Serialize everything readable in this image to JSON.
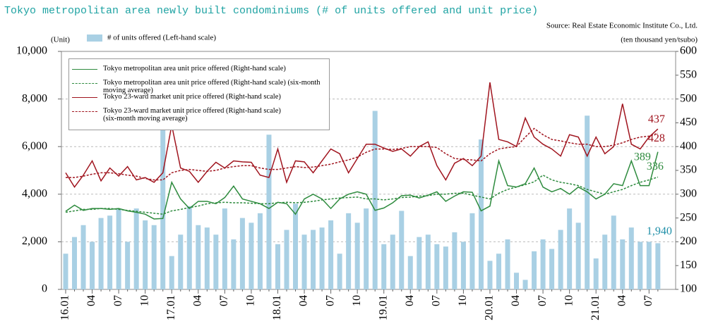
{
  "chart_data": {
    "type": "bar-line",
    "title": "Tokyo metropolitan area newly built condominiums (# of units offered and unit price)",
    "source": "Source: Real Estate Economic Institute Co., Ltd.",
    "y_label": "(Unit)",
    "y2_label": "(ten thousand yen/tsubo)",
    "categories": [
      "16.01",
      null,
      null,
      "04",
      null,
      null,
      "07",
      null,
      null,
      "10",
      null,
      null,
      "17.01",
      null,
      null,
      "04",
      null,
      null,
      "07",
      null,
      null,
      "10",
      null,
      null,
      "18.01",
      null,
      null,
      "04",
      null,
      null,
      "07",
      null,
      null,
      "10",
      null,
      null,
      "19.01",
      null,
      null,
      "04",
      null,
      null,
      "07",
      null,
      null,
      "10",
      null,
      null,
      "20.01",
      null,
      null,
      "04",
      null,
      null,
      "07",
      null,
      null,
      "10",
      null,
      null,
      "21.01",
      null,
      null,
      "04",
      null,
      null,
      "07",
      null
    ],
    "ylim": [
      0,
      10000
    ],
    "yticks": [
      0,
      {
        "value": 2000,
        "label": "2,000"
      },
      {
        "value": 4000,
        "label": "4,000"
      },
      {
        "value": 6000,
        "label": "6,000"
      },
      {
        "value": 8000,
        "label": "8,000"
      },
      {
        "value": 10000,
        "label": "10,000"
      }
    ],
    "y2lim": [
      100,
      600
    ],
    "y2ticks": [
      100,
      150,
      200,
      250,
      300,
      350,
      400,
      450,
      500,
      550,
      600
    ],
    "grid": true,
    "series": [
      {
        "name": "# of units offered (Left-hand scale)",
        "type": "bar",
        "axis": "y",
        "color": "#a9d0e4",
        "values": [
          1500,
          2200,
          2700,
          2000,
          3000,
          3100,
          3400,
          2000,
          3400,
          2900,
          2700,
          6800,
          1400,
          2300,
          3500,
          2700,
          2600,
          2300,
          3400,
          2100,
          3000,
          2800,
          3200,
          6500,
          1900,
          2500,
          3600,
          2300,
          2500,
          2600,
          2900,
          1500,
          3200,
          2800,
          3400,
          7500,
          1900,
          2300,
          3300,
          1400,
          2200,
          2300,
          1900,
          1800,
          2400,
          2000,
          3200,
          6300,
          1200,
          1500,
          2100,
          700,
          400,
          1600,
          2100,
          1700,
          2500,
          3400,
          2800,
          7300,
          1300,
          2300,
          3100,
          2100,
          2600,
          2000,
          2000,
          1940
        ],
        "value_labels": [
          null,
          null,
          null,
          null,
          null,
          null,
          null,
          null,
          null,
          null,
          null,
          null,
          null,
          null,
          null,
          null,
          null,
          null,
          null,
          null,
          null,
          null,
          null,
          null,
          null,
          null,
          null,
          null,
          null,
          null,
          null,
          null,
          null,
          null,
          null,
          null,
          null,
          null,
          null,
          null,
          null,
          null,
          null,
          null,
          null,
          null,
          null,
          null,
          null,
          null,
          null,
          null,
          null,
          null,
          null,
          null,
          null,
          null,
          null,
          null,
          null,
          null,
          null,
          null,
          null,
          null,
          null,
          "1,940"
        ]
      },
      {
        "name": "Tokyo metropolitan area unit price offered (Right-hand scale)",
        "type": "line",
        "axis": "y2",
        "color": "#2e8b3e",
        "dashed": false,
        "values": [
          264,
          277,
          266,
          270,
          270,
          268,
          270,
          265,
          262,
          258,
          248,
          249,
          325,
          290,
          270,
          285,
          285,
          280,
          293,
          317,
          290,
          285,
          280,
          270,
          283,
          280,
          258,
          290,
          300,
          290,
          270,
          290,
          300,
          305,
          300,
          266,
          271,
          282,
          297,
          298,
          292,
          298,
          305,
          285,
          296,
          305,
          304,
          265,
          275,
          370,
          318,
          315,
          322,
          355,
          315,
          305,
          312,
          300,
          315,
          305,
          290,
          300,
          322,
          318,
          370,
          318,
          318,
          389
        ]
      },
      {
        "name": "Tokyo metropolitan area unit price offered (Right-hand scale) (six-month moving average)",
        "type": "line",
        "axis": "y2",
        "color": "#2e8b3e",
        "dashed": true,
        "values": [
          262,
          265,
          268,
          268,
          270,
          270,
          268,
          266,
          264,
          262,
          260,
          258,
          265,
          268,
          272,
          275,
          280,
          282,
          283,
          282,
          282,
          281,
          280,
          280,
          282,
          283,
          282,
          283,
          285,
          288,
          290,
          292,
          293,
          294,
          290,
          290,
          288,
          290,
          293,
          294,
          296,
          297,
          300,
          300,
          302,
          302,
          298,
          294,
          290,
          302,
          310,
          315,
          320,
          326,
          340,
          330,
          325,
          322,
          318,
          310,
          305,
          300,
          305,
          310,
          318,
          325,
          330,
          336
        ]
      },
      {
        "name": "Tokyo 23-ward market unit price offered (Right-hand scale)",
        "type": "line",
        "axis": "y2",
        "color": "#a0141e",
        "dashed": false,
        "values": [
          345,
          315,
          340,
          370,
          328,
          355,
          338,
          358,
          330,
          335,
          325,
          345,
          445,
          355,
          348,
          325,
          348,
          367,
          355,
          370,
          368,
          367,
          340,
          335,
          395,
          325,
          370,
          368,
          345,
          370,
          395,
          385,
          345,
          375,
          405,
          405,
          397,
          390,
          395,
          380,
          400,
          410,
          360,
          330,
          365,
          375,
          360,
          380,
          535,
          415,
          410,
          400,
          460,
          420,
          405,
          395,
          380,
          425,
          420,
          380,
          420,
          385,
          400,
          490,
          405,
          395,
          420,
          437
        ]
      },
      {
        "name": "Tokyo 23-ward market unit price offered (Right-hand scale)\n(six-month moving average)",
        "type": "line",
        "axis": "y2",
        "color": "#a0141e",
        "dashed": true,
        "values": [
          335,
          335,
          338,
          342,
          345,
          345,
          343,
          340,
          338,
          333,
          330,
          330,
          345,
          350,
          352,
          350,
          348,
          350,
          355,
          358,
          360,
          360,
          355,
          352,
          352,
          355,
          358,
          356,
          357,
          360,
          363,
          368,
          372,
          378,
          388,
          395,
          395,
          394,
          396,
          400,
          400,
          400,
          398,
          385,
          375,
          373,
          372,
          370,
          385,
          395,
          398,
          400,
          420,
          438,
          425,
          415,
          412,
          408,
          405,
          405,
          400,
          400,
          403,
          408,
          415,
          420,
          422,
          428
        ]
      }
    ]
  }
}
